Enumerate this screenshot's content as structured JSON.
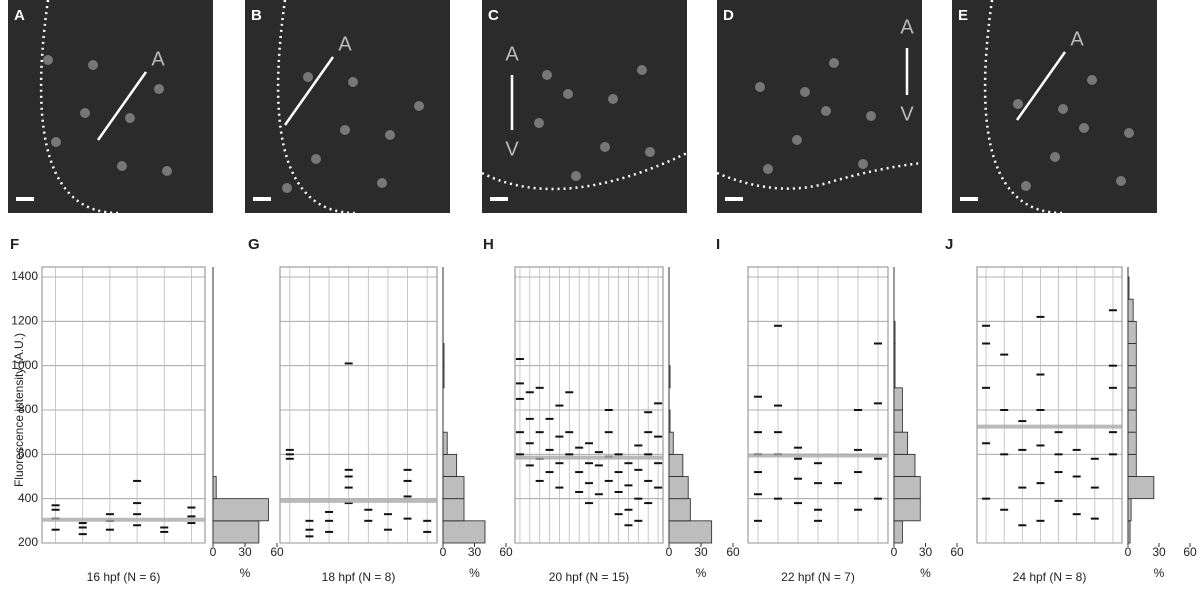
{
  "images": [
    {
      "panel": "A",
      "marks": [
        "A"
      ]
    },
    {
      "panel": "B",
      "marks": [
        "A"
      ]
    },
    {
      "panel": "C",
      "marks": [
        "A",
        "V"
      ]
    },
    {
      "panel": "D",
      "marks": [
        "A",
        "V"
      ]
    },
    {
      "panel": "E",
      "marks": [
        "A"
      ]
    }
  ],
  "y_label": "Fluorescence intensity (A.U.)",
  "chart_data": [
    {
      "type": "strip",
      "panel": "F",
      "caption": "16 hpf (N = 6)",
      "ylim": [
        200,
        1400
      ],
      "yticks": [
        200,
        400,
        600,
        800,
        1000,
        1200,
        1400
      ],
      "columns": [
        [
          260,
          310,
          350,
          370
        ],
        [
          240,
          270,
          290
        ],
        [
          260,
          300,
          330
        ],
        [
          280,
          330,
          380,
          480
        ],
        [
          250,
          270
        ],
        [
          290,
          320,
          360
        ]
      ],
      "mean": 305,
      "hist": {
        "bins": [
          200,
          300,
          400,
          500,
          600,
          700,
          800,
          900,
          1000,
          1100,
          1200,
          1300,
          1400
        ],
        "values": [
          43,
          52,
          3,
          0,
          0,
          0,
          0,
          0,
          0,
          0,
          0,
          0
        ],
        "xlim": [
          0,
          60
        ],
        "xticks": [
          0,
          30,
          60
        ],
        "xlabel": "%"
      }
    },
    {
      "type": "strip",
      "panel": "G",
      "caption": "18 hpf (N = 8)",
      "ylim": [
        200,
        1400
      ],
      "yticks": [
        200,
        400,
        600,
        800,
        1000,
        1200,
        1400
      ],
      "columns": [
        [
          580,
          600,
          620
        ],
        [
          230,
          260,
          300
        ],
        [
          250,
          300,
          340
        ],
        [
          380,
          450,
          500,
          530,
          1010
        ],
        [
          300,
          350
        ],
        [
          260,
          330
        ],
        [
          310,
          410,
          480,
          530
        ],
        [
          250,
          300
        ]
      ],
      "mean": 390,
      "hist": {
        "bins": [
          200,
          300,
          400,
          500,
          600,
          700,
          800,
          900,
          1000,
          1100,
          1200,
          1300,
          1400
        ],
        "values": [
          40,
          20,
          20,
          13,
          4,
          0,
          0,
          1,
          1,
          0,
          0,
          0
        ],
        "xlim": [
          0,
          60
        ],
        "xticks": [
          0,
          30,
          60
        ],
        "xlabel": "%"
      }
    },
    {
      "type": "strip",
      "panel": "H",
      "caption": "20 hpf (N = 15)",
      "ylim": [
        200,
        1400
      ],
      "yticks": [
        200,
        400,
        600,
        800,
        1000,
        1200,
        1400
      ],
      "columns": [
        [
          600,
          700,
          850,
          920,
          1030
        ],
        [
          550,
          650,
          760,
          880
        ],
        [
          480,
          580,
          700,
          900
        ],
        [
          520,
          620,
          760
        ],
        [
          450,
          560,
          680,
          820
        ],
        [
          600,
          700,
          880
        ],
        [
          430,
          520,
          630
        ],
        [
          380,
          470,
          560,
          650
        ],
        [
          420,
          550,
          610
        ],
        [
          480,
          590,
          700,
          800
        ],
        [
          330,
          430,
          520,
          600
        ],
        [
          280,
          350,
          460,
          560
        ],
        [
          300,
          400,
          530,
          640
        ],
        [
          380,
          480,
          600,
          700,
          790
        ],
        [
          450,
          560,
          680,
          830
        ]
      ],
      "mean": 585,
      "hist": {
        "bins": [
          200,
          300,
          400,
          500,
          600,
          700,
          800,
          900,
          1000,
          1100,
          1200,
          1300,
          1400
        ],
        "values": [
          40,
          20,
          18,
          13,
          4,
          1,
          0,
          1,
          0,
          0,
          0,
          0
        ],
        "xlim": [
          0,
          60
        ],
        "xticks": [
          0,
          30,
          60
        ],
        "xlabel": "%"
      }
    },
    {
      "type": "strip",
      "panel": "I",
      "caption": "22 hpf (N = 7)",
      "ylim": [
        200,
        1400
      ],
      "yticks": [
        200,
        400,
        600,
        800,
        1000,
        1200,
        1400
      ],
      "columns": [
        [
          300,
          420,
          520,
          600,
          700,
          860
        ],
        [
          400,
          600,
          700,
          820,
          1180
        ],
        [
          380,
          490,
          580,
          630
        ],
        [
          300,
          350,
          470,
          560
        ],
        [
          470
        ],
        [
          350,
          520,
          620,
          800
        ],
        [
          400,
          580,
          830,
          1100
        ]
      ],
      "mean": 595,
      "hist": {
        "bins": [
          200,
          300,
          400,
          500,
          600,
          700,
          800,
          900,
          1000,
          1100,
          1200,
          1300,
          1400
        ],
        "values": [
          8,
          25,
          25,
          20,
          13,
          8,
          8,
          1,
          1,
          1,
          0,
          0
        ],
        "xlim": [
          0,
          60
        ],
        "xticks": [
          0,
          30,
          60
        ],
        "xlabel": "%"
      }
    },
    {
      "type": "strip",
      "panel": "J",
      "caption": "24 hpf (N = 8)",
      "ylim": [
        200,
        1400
      ],
      "yticks": [
        200,
        400,
        600,
        800,
        1000,
        1200,
        1400
      ],
      "columns": [
        [
          400,
          650,
          900,
          1100,
          1180
        ],
        [
          350,
          600,
          800,
          1050
        ],
        [
          280,
          450,
          620,
          750
        ],
        [
          300,
          470,
          640,
          800,
          960,
          1220
        ],
        [
          390,
          520,
          600,
          700
        ],
        [
          330,
          500,
          620
        ],
        [
          310,
          450,
          580
        ],
        [
          600,
          700,
          900,
          1000,
          1250
        ]
      ],
      "mean": 725,
      "hist": {
        "bins": [
          200,
          300,
          400,
          500,
          600,
          700,
          800,
          900,
          1000,
          1100,
          1200,
          1300,
          1400
        ],
        "values": [
          2,
          3,
          25,
          8,
          8,
          8,
          8,
          8,
          8,
          8,
          5,
          1
        ],
        "xlim": [
          0,
          60
        ],
        "xticks": [
          0,
          30,
          60
        ],
        "xlabel": "%"
      }
    }
  ]
}
